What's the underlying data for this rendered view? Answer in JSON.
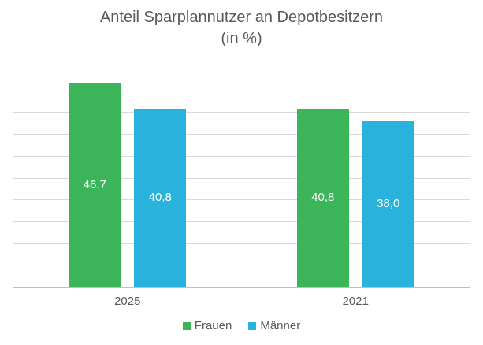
{
  "title": {
    "line1": "Anteil Sparplannutzer an Depotbesitzern",
    "line2": "(in %)"
  },
  "colors": {
    "frauen": "#3CB45A",
    "maenner": "#29B3DC",
    "grid": "#D9D9D9",
    "axis": "#BFBFBF",
    "text": "#595959",
    "bar_label": "#FFFFFF",
    "background": "#FFFFFF"
  },
  "chart_data": {
    "type": "bar",
    "title": "Anteil Sparplannutzer an Depotbesitzern (in %)",
    "categories": [
      "2025",
      "2021"
    ],
    "series": [
      {
        "name": "Frauen",
        "color": "#3CB45A",
        "values": [
          46.7,
          40.8
        ],
        "labels": [
          "46,7",
          "40,8"
        ]
      },
      {
        "name": "Männer",
        "color": "#29B3DC",
        "values": [
          40.8,
          38.0
        ],
        "labels": [
          "40,8",
          "38,0"
        ]
      }
    ],
    "ylim": [
      0,
      50
    ],
    "grid_step": 5,
    "grid": true,
    "legend_position": "bottom",
    "xlabel": "",
    "ylabel": ""
  },
  "legend": {
    "items": [
      {
        "label": "Frauen",
        "color": "#3CB45A"
      },
      {
        "label": "Männer",
        "color": "#29B3DC"
      }
    ]
  }
}
